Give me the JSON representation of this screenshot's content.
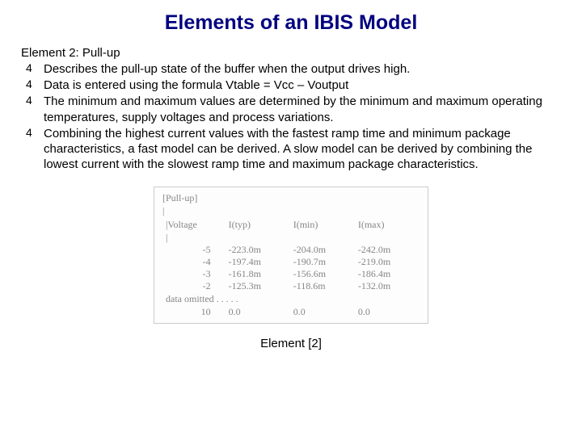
{
  "title": "Elements of an IBIS Model",
  "subtitle": "Element 2: Pull-up",
  "bullets": [
    "Describes the pull-up state of the buffer when the output drives high.",
    "Data is entered using the formula Vtable = Vcc – Voutput",
    "The minimum and maximum values are determined by the minimum and maximum operating temperatures, supply voltages and process variations.",
    "Combining the highest current values with the fastest ramp time and minimum package characteristics, a fast model can be derived. A slow model can be derived by combining the lowest current with the slowest ramp time and maximum package characteristics."
  ],
  "table": {
    "top_lines": [
      "[Pull-up]",
      "|",
      "|Voltage",
      "|"
    ],
    "columns": [
      "",
      "I(typ)",
      "I(min)",
      "I(max)"
    ],
    "rows": [
      [
        "-5",
        "-223.0m",
        "-204.0m",
        "-242.0m"
      ],
      [
        "-4",
        "-197.4m",
        "-190.7m",
        "-219.0m"
      ],
      [
        "-3",
        "-161.8m",
        "-156.6m",
        "-186.4m"
      ],
      [
        "-2",
        "-125.3m",
        "-118.6m",
        "-132.0m"
      ]
    ],
    "omitted_text": "data omitted . . . . .",
    "last_row": [
      "10",
      "0.0",
      "0.0",
      "0.0"
    ]
  },
  "caption": "Element [2]"
}
